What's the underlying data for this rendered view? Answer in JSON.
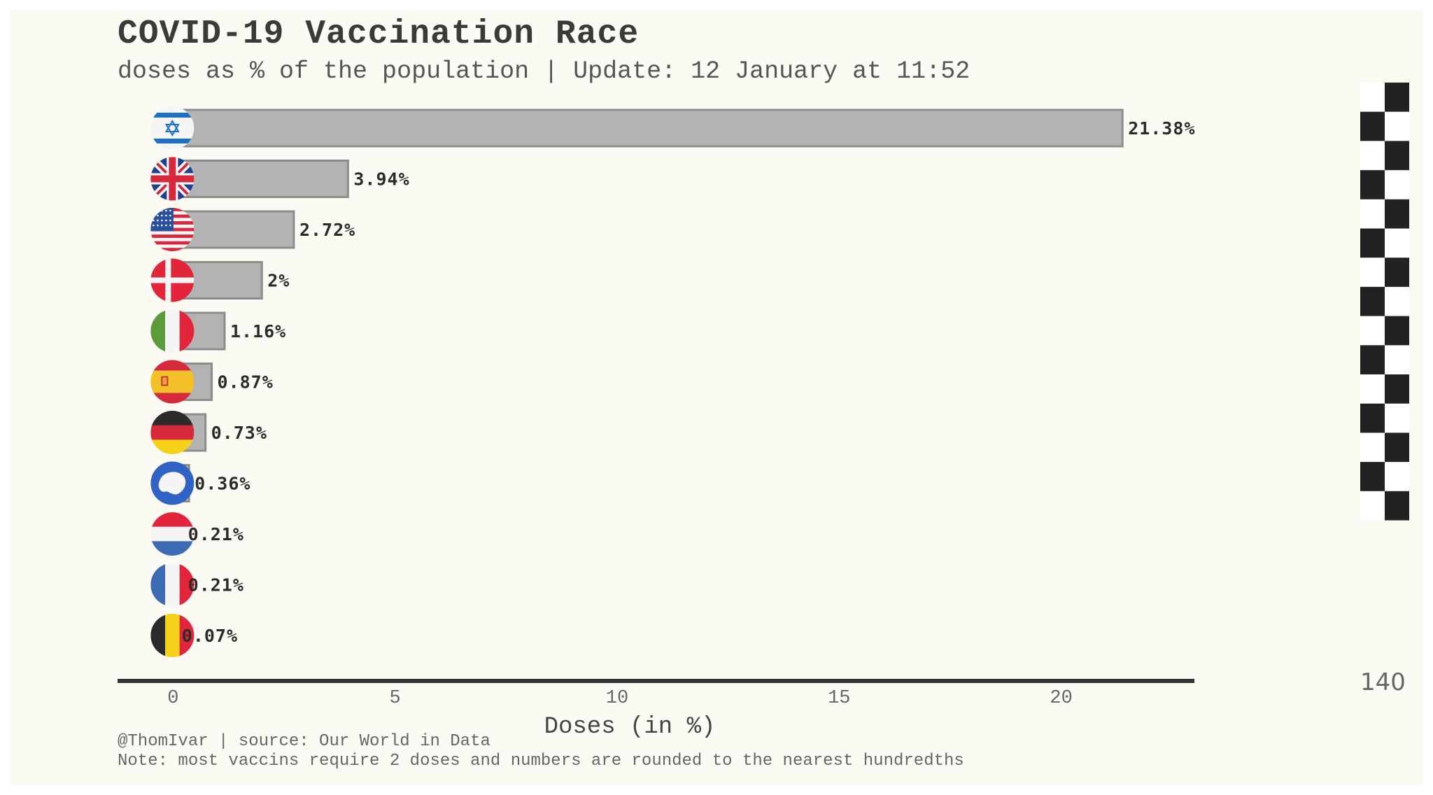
{
  "chart_data": {
    "type": "bar",
    "orientation": "horizontal",
    "title": "COVID-19 Vaccination Race",
    "subtitle": "doses as % of the population | Update: 12 January at 11:52",
    "xlabel": "Doses (in %)",
    "xlim": [
      -1.25,
      23
    ],
    "xticks": [
      0,
      5,
      10,
      15,
      20
    ],
    "categories": [
      "Israel",
      "United Kingdom",
      "United States",
      "Denmark",
      "Italy",
      "Spain",
      "Germany",
      "Antarctica",
      "Netherlands",
      "France",
      "Belgium"
    ],
    "values": [
      21.38,
      3.94,
      2.72,
      2,
      1.16,
      0.87,
      0.73,
      0.36,
      0.21,
      0.21,
      0.07
    ],
    "value_labels": [
      "21.38%",
      "3.94%",
      "2.72%",
      "2%",
      "1.16%",
      "0.87%",
      "0.73%",
      "0.36%",
      "0.21%",
      "0.21%",
      "0.07%"
    ],
    "flags": [
      "israel-flag-icon",
      "uk-flag-icon",
      "usa-flag-icon",
      "denmark-flag-icon",
      "italy-flag-icon",
      "spain-flag-icon",
      "germany-flag-icon",
      "antarctica-flag-icon",
      "netherlands-flag-icon",
      "france-flag-icon",
      "belgium-flag-icon"
    ],
    "grid": false,
    "bar_color": "#b3b3b3",
    "bar_edge_color": "#8c8c8c"
  },
  "lap_counter": "140",
  "footer": {
    "credit": "@ThomIvar | source: Our World in Data",
    "note": "Note: most vaccins require 2 doses and numbers are rounded to the nearest hundredths"
  },
  "colors": {
    "background": "#fcfbf3",
    "text": "#3a3a3a",
    "axis": "#333333",
    "checker": "#222222"
  }
}
